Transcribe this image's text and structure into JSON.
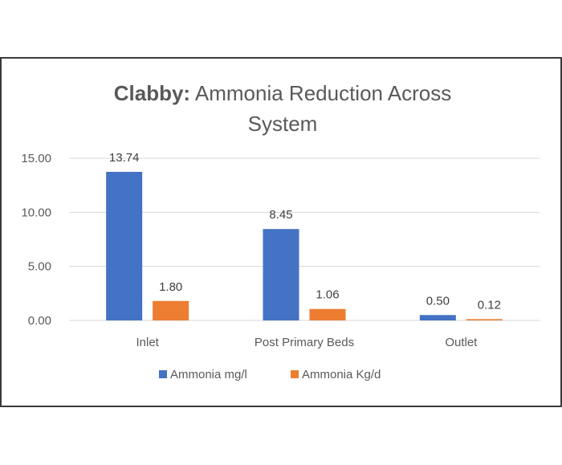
{
  "chart_data": {
    "type": "bar",
    "title_bold": "Clabby:",
    "title_line1": " Ammonia Reduction Across",
    "title_line2": "System",
    "categories": [
      "Inlet",
      "Post Primary Beds",
      "Outlet"
    ],
    "series": [
      {
        "name": "Ammonia mg/l",
        "values": [
          13.74,
          8.45,
          0.5
        ],
        "labels": [
          "13.74",
          "8.45",
          "0.50"
        ],
        "color": "#4472c4"
      },
      {
        "name": "Ammonia Kg/d",
        "values": [
          1.8,
          1.06,
          0.12
        ],
        "labels": [
          "1.80",
          "1.06",
          "0.12"
        ],
        "color": "#ed7d31"
      }
    ],
    "yticks": [
      0,
      5,
      10,
      15
    ],
    "ytick_labels": [
      "0.00",
      "5.00",
      "10.00",
      "15.00"
    ],
    "ylim": [
      0,
      15
    ],
    "grid": true,
    "legend_position": "bottom"
  }
}
